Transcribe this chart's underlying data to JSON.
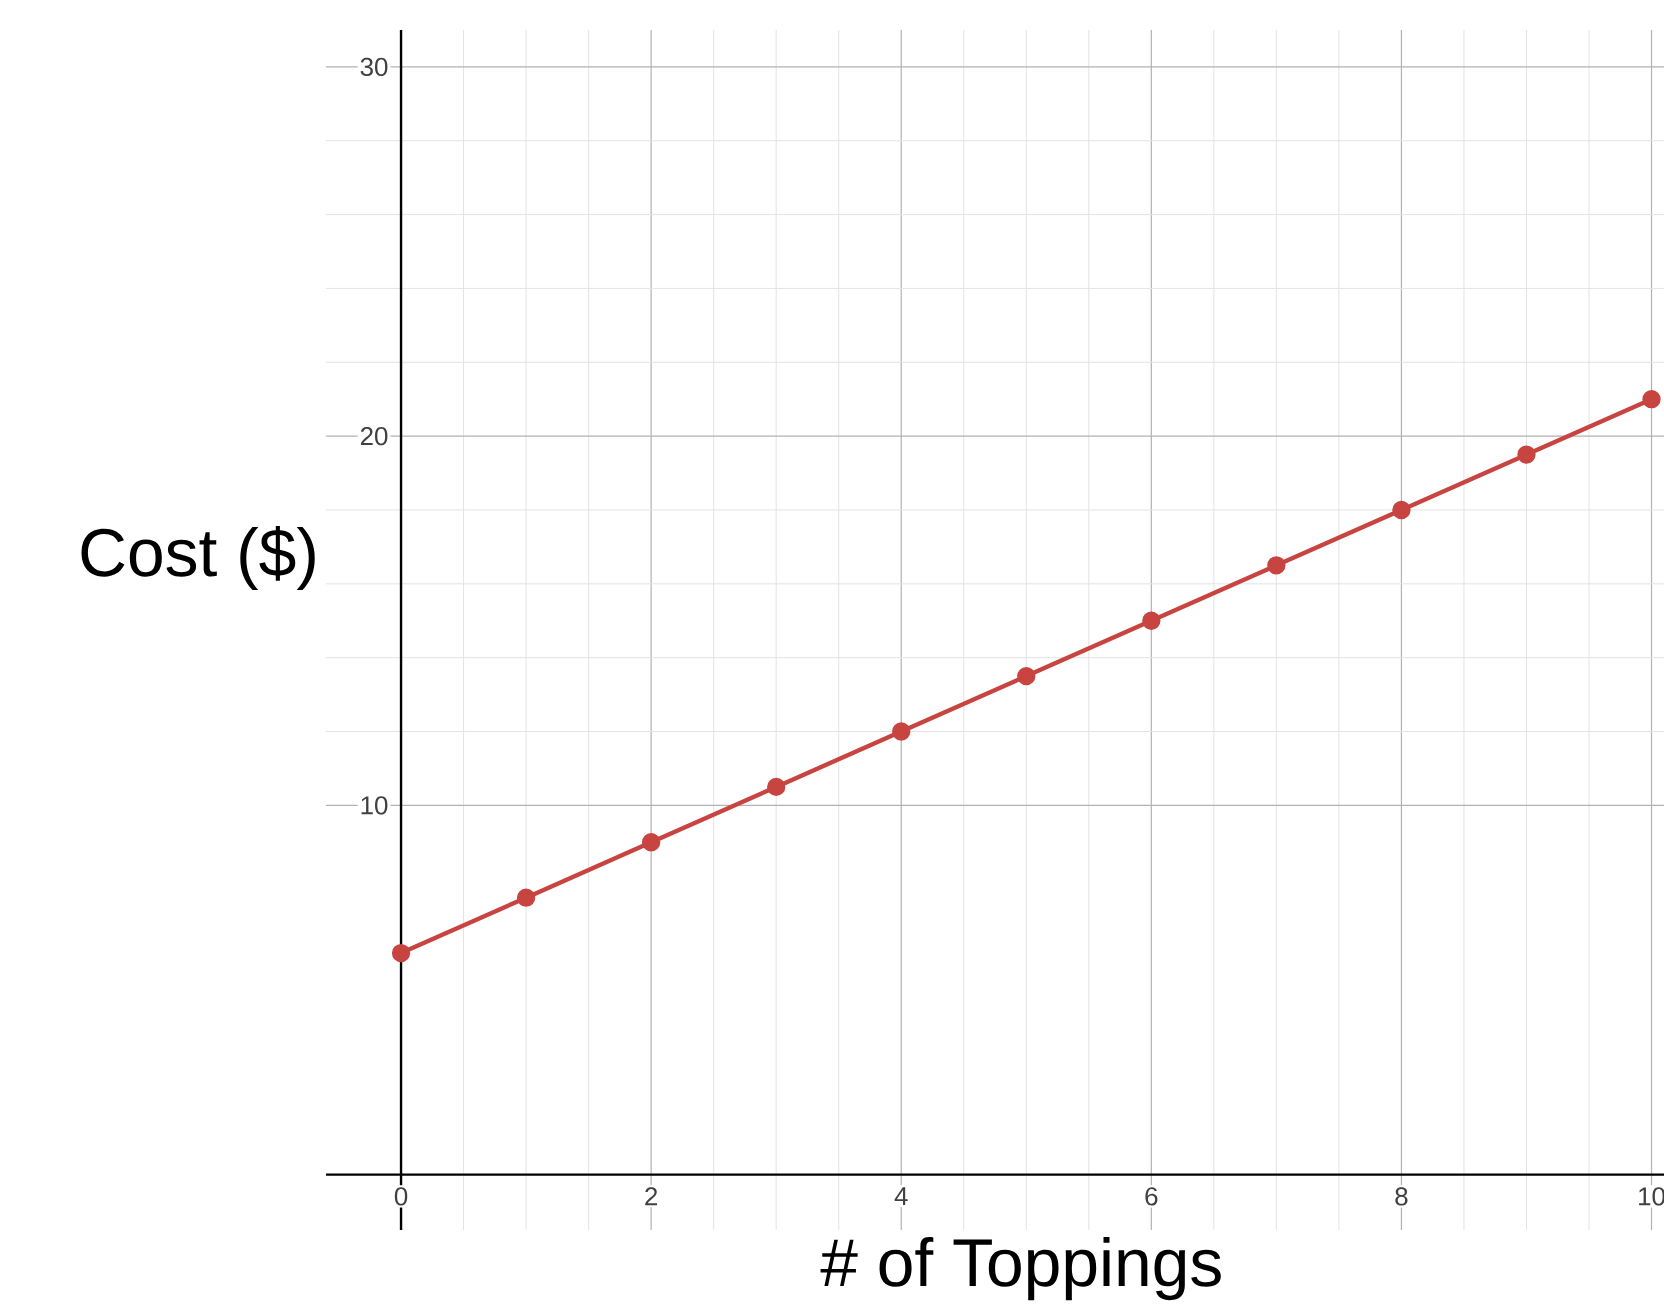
{
  "chart_data": {
    "type": "line",
    "xlabel": "# of Toppings",
    "ylabel": "Cost ($)",
    "x": [
      0,
      1,
      2,
      3,
      4,
      5,
      6,
      7,
      8,
      9,
      10
    ],
    "series": [
      {
        "color": "#c74440",
        "values": [
          6,
          7.5,
          9,
          10.5,
          12,
          13.5,
          15,
          16.5,
          18,
          19.5,
          21
        ]
      }
    ],
    "xlim": [
      -0.6,
      10.1
    ],
    "ylim": [
      -1.5,
      31
    ],
    "xticks": [
      0,
      2,
      4,
      6,
      8,
      10
    ],
    "yticks": [
      10,
      20,
      30
    ],
    "grid": true,
    "marker": "circle",
    "line_style": "solid"
  }
}
